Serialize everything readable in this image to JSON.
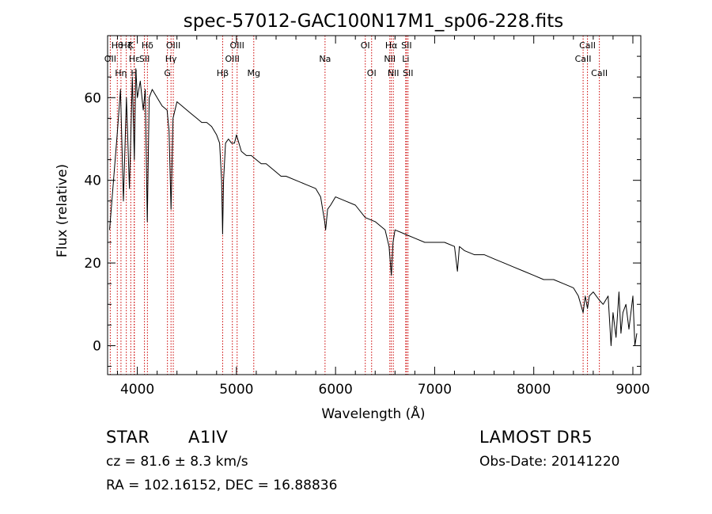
{
  "chart_data": {
    "type": "line",
    "title": "spec-57012-GAC100N17M1_sp06-228.fits",
    "xlabel": "Wavelength (Å)",
    "ylabel": "Flux (relative)",
    "xlim": [
      3700,
      9080
    ],
    "ylim": [
      -7,
      75
    ],
    "xticks": [
      4000,
      5000,
      6000,
      7000,
      8000,
      9000
    ],
    "yticks": [
      0,
      20,
      40,
      60
    ],
    "grid": false,
    "line_color": "#000000",
    "marker_color": "#cc0000",
    "series": [
      {
        "x": [
          3720,
          3760,
          3800,
          3830,
          3860,
          3890,
          3920,
          3950,
          3970,
          3985,
          4000,
          4030,
          4060,
          4080,
          4101,
          4120,
          4150,
          4200,
          4250,
          4300,
          4320,
          4340,
          4360,
          4380,
          4400,
          4450,
          4500,
          4550,
          4600,
          4650,
          4700,
          4750,
          4800,
          4830,
          4850,
          4861,
          4870,
          4890,
          4920,
          4950,
          4980,
          5000,
          5050,
          5100,
          5150,
          5200,
          5250,
          5300,
          5350,
          5400,
          5450,
          5500,
          5600,
          5700,
          5800,
          5850,
          5890,
          5900,
          5920,
          5950,
          6000,
          6100,
          6200,
          6300,
          6400,
          6500,
          6540,
          6563,
          6580,
          6600,
          6700,
          6800,
          6900,
          7000,
          7100,
          7200,
          7230,
          7250,
          7300,
          7400,
          7500,
          7600,
          7700,
          7800,
          7900,
          8000,
          8100,
          8200,
          8300,
          8400,
          8450,
          8498,
          8520,
          8542,
          8560,
          8600,
          8662,
          8700,
          8750,
          8780,
          8800,
          8830,
          8860,
          8880,
          8900,
          8930,
          8960,
          9000,
          9020,
          9040
        ],
        "y": [
          28,
          40,
          52,
          62,
          35,
          60,
          38,
          65,
          45,
          67,
          60,
          64,
          57,
          62,
          30,
          60,
          62,
          60,
          58,
          57,
          52,
          33,
          55,
          57,
          59,
          58,
          57,
          56,
          55,
          54,
          54,
          53,
          51,
          49,
          40,
          27,
          40,
          49,
          50,
          49,
          49,
          51,
          47,
          46,
          46,
          45,
          44,
          44,
          43,
          42,
          41,
          41,
          40,
          39,
          38,
          36,
          30,
          28,
          33,
          34,
          36,
          35,
          34,
          31,
          30,
          28,
          24,
          17,
          25,
          28,
          27,
          26,
          25,
          25,
          25,
          24,
          18,
          24,
          23,
          22,
          22,
          21,
          20,
          19,
          18,
          17,
          16,
          16,
          15,
          14,
          12,
          8,
          12,
          9,
          12,
          13,
          11,
          10,
          12,
          0,
          8,
          2,
          13,
          3,
          8,
          10,
          4,
          12,
          0,
          3
        ]
      }
    ],
    "lines": [
      {
        "label": "OII",
        "x": 3727,
        "row": 1
      },
      {
        "label": "Hθ",
        "x": 3798,
        "row": 0
      },
      {
        "label": "Hη",
        "x": 3835,
        "row": 2
      },
      {
        "label": "Hζ",
        "x": 3889,
        "row": 0
      },
      {
        "label": "K",
        "x": 3934,
        "row": 0
      },
      {
        "label": "H",
        "x": 3968,
        "row": 2
      },
      {
        "label": "Hε",
        "x": 3970,
        "row": 1
      },
      {
        "label": "Hδ",
        "x": 4102,
        "row": 0
      },
      {
        "label": "SII",
        "x": 4072,
        "row": 1
      },
      {
        "label": "G",
        "x": 4304,
        "row": 2
      },
      {
        "label": "Hγ",
        "x": 4340,
        "row": 1
      },
      {
        "label": "OIII",
        "x": 4363,
        "row": 0
      },
      {
        "label": "Hβ",
        "x": 4861,
        "row": 2
      },
      {
        "label": "OIII",
        "x": 4959,
        "row": 1
      },
      {
        "label": "OIII",
        "x": 5007,
        "row": 0
      },
      {
        "label": "Mg",
        "x": 5175,
        "row": 2
      },
      {
        "label": "Na",
        "x": 5894,
        "row": 1
      },
      {
        "label": "OI",
        "x": 6300,
        "row": 0
      },
      {
        "label": "OI",
        "x": 6364,
        "row": 2
      },
      {
        "label": "NII",
        "x": 6548,
        "row": 1
      },
      {
        "label": "Hα",
        "x": 6563,
        "row": 0
      },
      {
        "label": "NII",
        "x": 6583,
        "row": 2
      },
      {
        "label": "Li",
        "x": 6708,
        "row": 1
      },
      {
        "label": "SII",
        "x": 6716,
        "row": 0
      },
      {
        "label": "SII",
        "x": 6731,
        "row": 2
      },
      {
        "label": "CaII",
        "x": 8498,
        "row": 1
      },
      {
        "label": "CaII",
        "x": 8542,
        "row": 0
      },
      {
        "label": "CaII",
        "x": 8662,
        "row": 2
      }
    ]
  },
  "info": {
    "object_class": "STAR",
    "subclass": "A1IV",
    "survey": "LAMOST  DR5",
    "cz": "cz = 81.6 ± 8.3 km/s",
    "obs_date": "Obs-Date: 20141220",
    "coords": "RA = 102.16152, DEC =  16.88836"
  }
}
